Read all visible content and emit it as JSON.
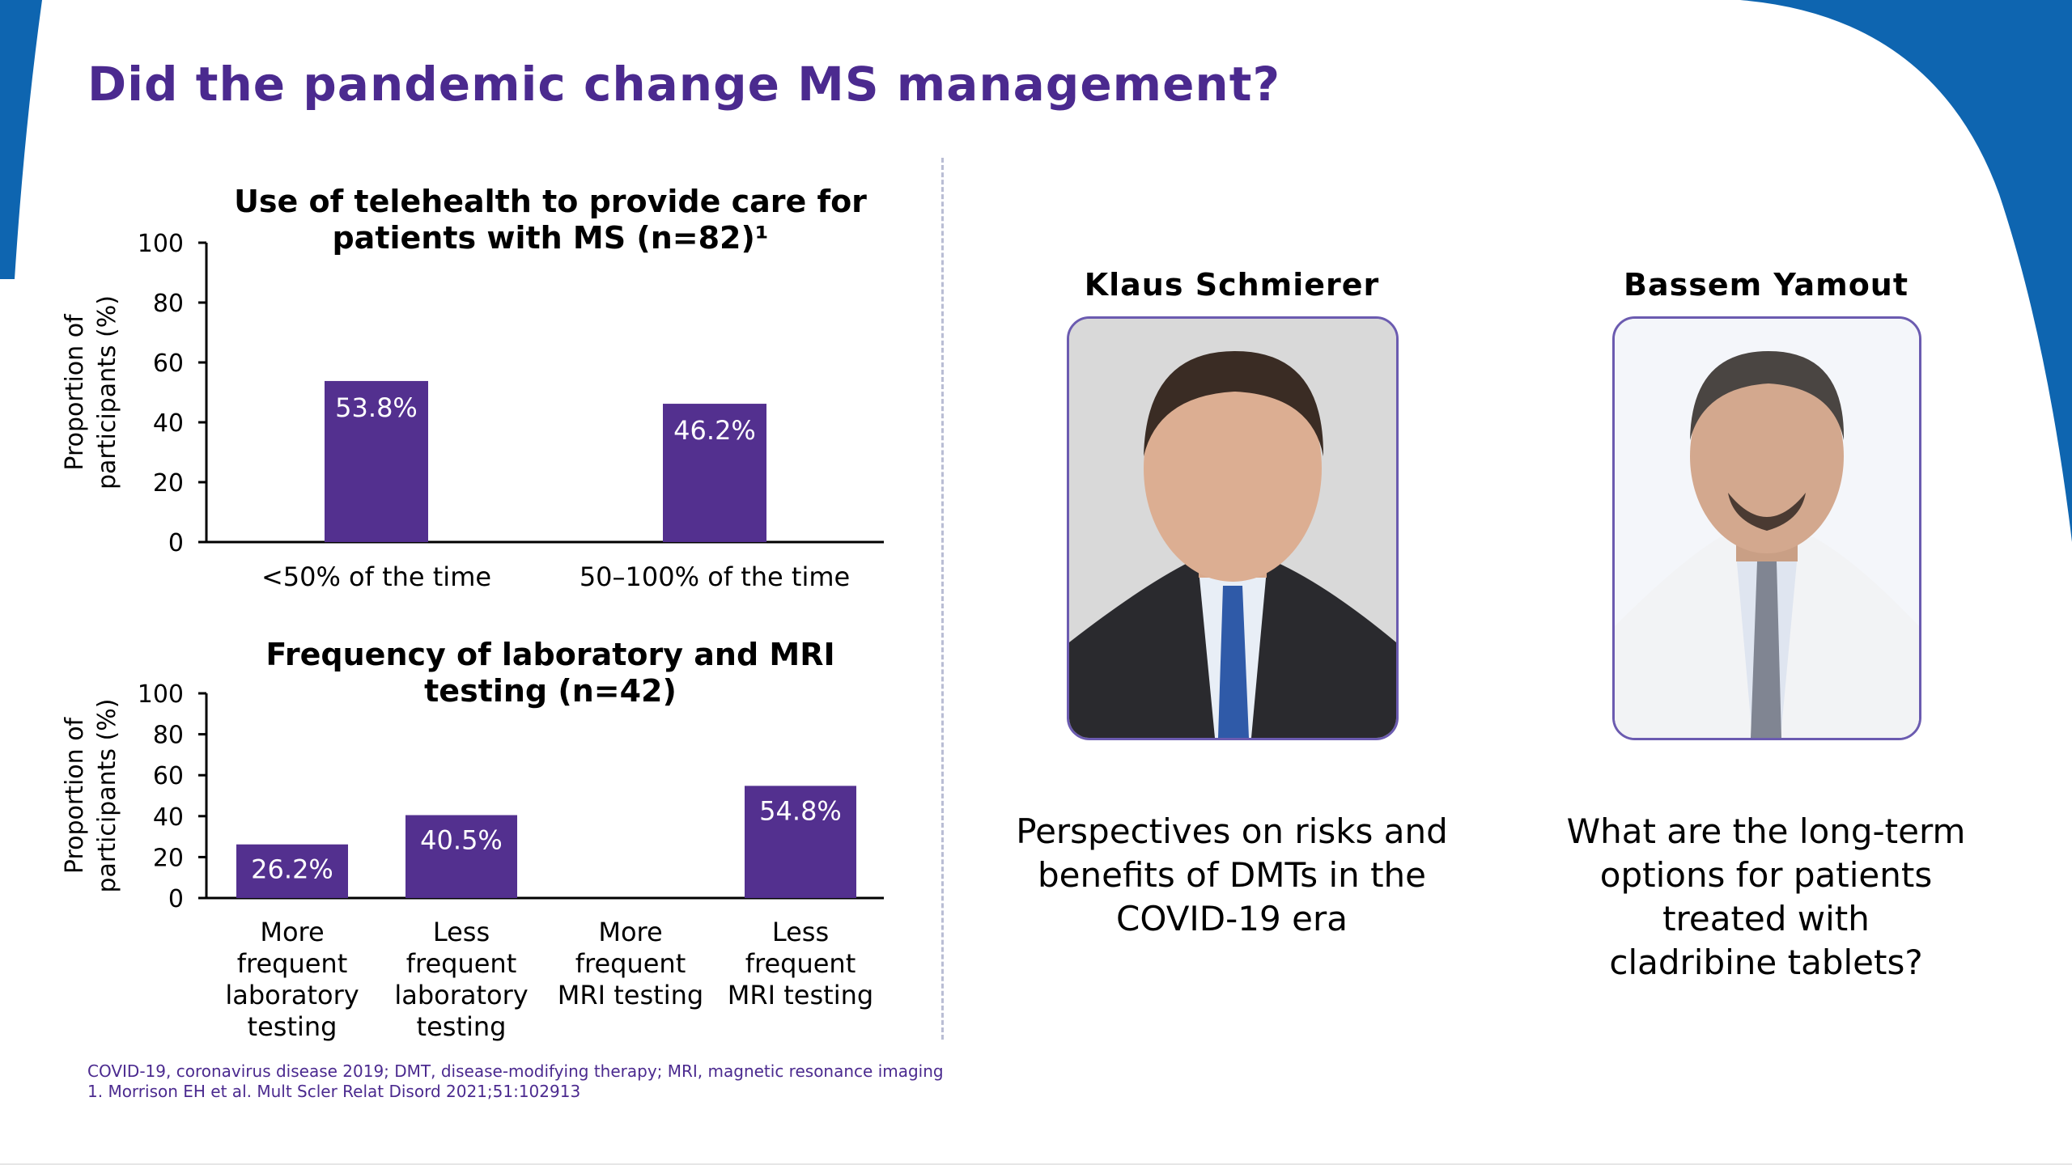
{
  "slide": {
    "title": "Did the pandemic change MS management?",
    "accent_color": "#4b2a8f",
    "bar_color": "#53308f",
    "corner_color": "#0e65b0"
  },
  "chart_data": [
    {
      "type": "bar",
      "title": "Use of telehealth to provide care for patients with MS (n=82)¹",
      "title_lines": [
        "Use of telehealth to provide care for",
        "patients with MS (n=82)¹"
      ],
      "ylabel": "Proportion of participants (%)",
      "ylabel_lines": [
        "Proportion of",
        "participants (%)"
      ],
      "ylim": [
        0,
        100
      ],
      "yticks": [
        0,
        20,
        40,
        60,
        80,
        100
      ],
      "categories": [
        "<50% of the time",
        "50–100% of the time"
      ],
      "category_lines": [
        [
          "<50% of the time"
        ],
        [
          "50–100% of the time"
        ]
      ],
      "values": [
        53.8,
        46.2
      ],
      "value_labels": [
        "53.8%",
        "46.2%"
      ],
      "grid": false
    },
    {
      "type": "bar",
      "title": "Frequency of laboratory and MRI testing (n=42)",
      "title_lines": [
        "Frequency of laboratory and MRI",
        "testing (n=42)"
      ],
      "ylabel": "Proportion of participants (%)",
      "ylabel_lines": [
        "Proportion of",
        "participants (%)"
      ],
      "ylim": [
        0,
        100
      ],
      "yticks": [
        0,
        20,
        40,
        60,
        80,
        100
      ],
      "categories": [
        "More frequent laboratory testing",
        "Less frequent laboratory testing",
        "More frequent MRI testing",
        "Less frequent MRI testing"
      ],
      "category_lines": [
        [
          "More",
          "frequent",
          "laboratory",
          "testing"
        ],
        [
          "Less",
          "frequent",
          "laboratory",
          "testing"
        ],
        [
          "More",
          "frequent",
          "MRI testing"
        ],
        [
          "Less",
          "frequent",
          "MRI testing"
        ]
      ],
      "values": [
        26.2,
        40.5,
        null,
        54.8
      ],
      "value_labels": [
        "26.2%",
        "40.5%",
        "",
        "54.8%"
      ],
      "grid": false
    }
  ],
  "speakers": [
    {
      "name": "Klaus Schmierer",
      "caption_lines": [
        "Perspectives on risks and",
        "benefits of DMTs in the",
        "COVID-19 era"
      ]
    },
    {
      "name": "Bassem Yamout",
      "caption_lines": [
        "What are the long-term",
        "options for patients",
        "treated with",
        "cladribine tablets?"
      ]
    }
  ],
  "footnotes": {
    "abbreviations": "COVID-19, coronavirus disease 2019; DMT, disease-modifying therapy; MRI, magnetic resonance imaging",
    "reference": "1. Morrison EH et al. Mult Scler Relat Disord 2021;51:102913"
  }
}
